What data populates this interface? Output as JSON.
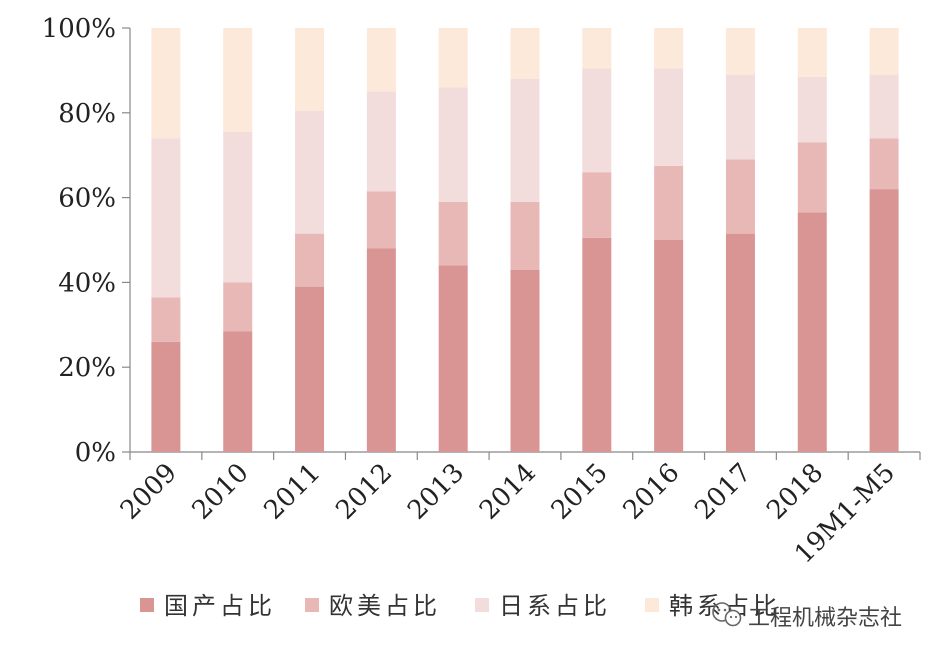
{
  "chart_data": {
    "type": "bar",
    "stacked": true,
    "categories": [
      "2009",
      "2010",
      "2011",
      "2012",
      "2013",
      "2014",
      "2015",
      "2016",
      "2017",
      "2018",
      "19M1-M5"
    ],
    "series": [
      {
        "name": "国产占比",
        "color": "#d99594",
        "values": [
          26,
          28.5,
          39,
          48,
          44,
          43,
          50.5,
          50,
          51.5,
          56.5,
          62
        ]
      },
      {
        "name": "欧美占比",
        "color": "#e8b8b6",
        "values": [
          10.5,
          11.5,
          12.5,
          13.5,
          15,
          16,
          15.5,
          17.5,
          17.5,
          16.5,
          12
        ]
      },
      {
        "name": "日系占比",
        "color": "#f2dcdc",
        "values": [
          37.5,
          35.5,
          29,
          23.5,
          27,
          29,
          24.5,
          23,
          20,
          15.5,
          15
        ]
      },
      {
        "name": "韩系占比",
        "color": "#fde9d9",
        "values": [
          26,
          24.5,
          19.5,
          15,
          14,
          12,
          9.5,
          9.5,
          11,
          11.5,
          11
        ]
      }
    ],
    "yticks": [
      "0%",
      "20%",
      "40%",
      "60%",
      "80%",
      "100%"
    ],
    "ylim": [
      0,
      100
    ],
    "legend_position": "bottom",
    "grid": false
  },
  "watermark": {
    "text": "工程机械杂志社",
    "icon": "wechat-icon"
  }
}
